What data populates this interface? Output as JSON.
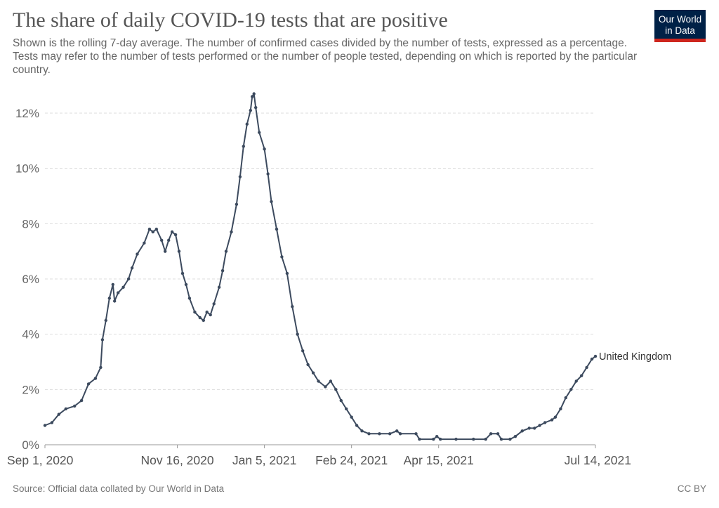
{
  "header": {
    "title": "The share of daily COVID-19 tests that are positive",
    "subtitle": "Shown is the rolling 7-day average. The number of confirmed cases divided by the number of tests, expressed as a percentage. Tests may refer to the number of tests performed or the number of people tested, depending on which is reported by the particular country.",
    "logo_line1": "Our World",
    "logo_line2": "in Data"
  },
  "footer": {
    "source": "Source: Official data collated by Our World in Data",
    "license": "CC BY"
  },
  "colors": {
    "series": "#3c4a5e",
    "grid": "#dddddd",
    "logo_bg": "#002147",
    "logo_bar": "#ce261e"
  },
  "chart_data": {
    "type": "line",
    "title": "The share of daily COVID-19 tests that are positive",
    "xlabel": "",
    "ylabel": "",
    "x_axis": "date",
    "xlim": [
      "2020-09-01",
      "2021-07-14"
    ],
    "ylim": [
      0,
      12
    ],
    "y_unit": "%",
    "y_ticks": [
      0,
      2,
      4,
      6,
      8,
      10,
      12
    ],
    "y_tick_labels": [
      "0%",
      "2%",
      "4%",
      "6%",
      "8%",
      "10%",
      "12%"
    ],
    "x_ticks": [
      "2020-09-01",
      "2020-11-16",
      "2021-01-05",
      "2021-02-24",
      "2021-04-15",
      "2021-07-14"
    ],
    "x_tick_labels": [
      "Sep 1, 2020",
      "Nov 16, 2020",
      "Jan 5, 2021",
      "Feb 24, 2021",
      "Apr 15, 2021",
      "Jul 14, 2021"
    ],
    "grid": "horizontal dashed",
    "legend": "inline label at line end",
    "series": [
      {
        "name": "United Kingdom",
        "points": [
          [
            "2020-09-01",
            0.7
          ],
          [
            "2020-09-05",
            0.8
          ],
          [
            "2020-09-09",
            1.1
          ],
          [
            "2020-09-13",
            1.3
          ],
          [
            "2020-09-18",
            1.4
          ],
          [
            "2020-09-22",
            1.6
          ],
          [
            "2020-09-26",
            2.2
          ],
          [
            "2020-09-30",
            2.4
          ],
          [
            "2020-10-03",
            2.8
          ],
          [
            "2020-10-04",
            3.8
          ],
          [
            "2020-10-06",
            4.5
          ],
          [
            "2020-10-08",
            5.3
          ],
          [
            "2020-10-10",
            5.8
          ],
          [
            "2020-10-11",
            5.2
          ],
          [
            "2020-10-13",
            5.5
          ],
          [
            "2020-10-16",
            5.7
          ],
          [
            "2020-10-19",
            6.0
          ],
          [
            "2020-10-21",
            6.4
          ],
          [
            "2020-10-24",
            6.9
          ],
          [
            "2020-10-28",
            7.3
          ],
          [
            "2020-10-31",
            7.8
          ],
          [
            "2020-11-02",
            7.7
          ],
          [
            "2020-11-04",
            7.8
          ],
          [
            "2020-11-07",
            7.4
          ],
          [
            "2020-11-09",
            7.0
          ],
          [
            "2020-11-11",
            7.4
          ],
          [
            "2020-11-13",
            7.7
          ],
          [
            "2020-11-15",
            7.6
          ],
          [
            "2020-11-17",
            7.0
          ],
          [
            "2020-11-19",
            6.2
          ],
          [
            "2020-11-21",
            5.8
          ],
          [
            "2020-11-23",
            5.3
          ],
          [
            "2020-11-26",
            4.8
          ],
          [
            "2020-11-29",
            4.6
          ],
          [
            "2020-12-01",
            4.5
          ],
          [
            "2020-12-03",
            4.8
          ],
          [
            "2020-12-05",
            4.7
          ],
          [
            "2020-12-07",
            5.1
          ],
          [
            "2020-12-10",
            5.7
          ],
          [
            "2020-12-12",
            6.3
          ],
          [
            "2020-12-14",
            7.0
          ],
          [
            "2020-12-17",
            7.7
          ],
          [
            "2020-12-20",
            8.7
          ],
          [
            "2020-12-22",
            9.7
          ],
          [
            "2020-12-24",
            10.8
          ],
          [
            "2020-12-26",
            11.6
          ],
          [
            "2020-12-28",
            12.1
          ],
          [
            "2020-12-29",
            12.6
          ],
          [
            "2020-12-30",
            12.7
          ],
          [
            "2020-12-31",
            12.2
          ],
          [
            "2021-01-02",
            11.3
          ],
          [
            "2021-01-05",
            10.7
          ],
          [
            "2021-01-07",
            9.8
          ],
          [
            "2021-01-09",
            8.8
          ],
          [
            "2021-01-12",
            7.8
          ],
          [
            "2021-01-15",
            6.8
          ],
          [
            "2021-01-18",
            6.2
          ],
          [
            "2021-01-21",
            5.0
          ],
          [
            "2021-01-24",
            4.0
          ],
          [
            "2021-01-27",
            3.4
          ],
          [
            "2021-01-30",
            2.9
          ],
          [
            "2021-02-02",
            2.6
          ],
          [
            "2021-02-05",
            2.3
          ],
          [
            "2021-02-09",
            2.1
          ],
          [
            "2021-02-12",
            2.3
          ],
          [
            "2021-02-15",
            2.0
          ],
          [
            "2021-02-18",
            1.6
          ],
          [
            "2021-02-21",
            1.3
          ],
          [
            "2021-02-24",
            1.0
          ],
          [
            "2021-02-27",
            0.7
          ],
          [
            "2021-03-02",
            0.5
          ],
          [
            "2021-03-06",
            0.4
          ],
          [
            "2021-03-12",
            0.4
          ],
          [
            "2021-03-18",
            0.4
          ],
          [
            "2021-03-22",
            0.5
          ],
          [
            "2021-03-24",
            0.4
          ],
          [
            "2021-04-02",
            0.4
          ],
          [
            "2021-04-04",
            0.2
          ],
          [
            "2021-04-12",
            0.2
          ],
          [
            "2021-04-14",
            0.3
          ],
          [
            "2021-04-16",
            0.2
          ],
          [
            "2021-04-25",
            0.2
          ],
          [
            "2021-05-05",
            0.2
          ],
          [
            "2021-05-12",
            0.2
          ],
          [
            "2021-05-15",
            0.4
          ],
          [
            "2021-05-19",
            0.4
          ],
          [
            "2021-05-21",
            0.2
          ],
          [
            "2021-05-26",
            0.2
          ],
          [
            "2021-05-29",
            0.3
          ],
          [
            "2021-06-02",
            0.5
          ],
          [
            "2021-06-06",
            0.6
          ],
          [
            "2021-06-09",
            0.6
          ],
          [
            "2021-06-12",
            0.7
          ],
          [
            "2021-06-15",
            0.8
          ],
          [
            "2021-06-19",
            0.9
          ],
          [
            "2021-06-21",
            1.0
          ],
          [
            "2021-06-24",
            1.3
          ],
          [
            "2021-06-27",
            1.7
          ],
          [
            "2021-06-30",
            2.0
          ],
          [
            "2021-07-03",
            2.3
          ],
          [
            "2021-07-06",
            2.5
          ],
          [
            "2021-07-09",
            2.8
          ],
          [
            "2021-07-12",
            3.1
          ],
          [
            "2021-07-14",
            3.2
          ]
        ]
      }
    ]
  }
}
